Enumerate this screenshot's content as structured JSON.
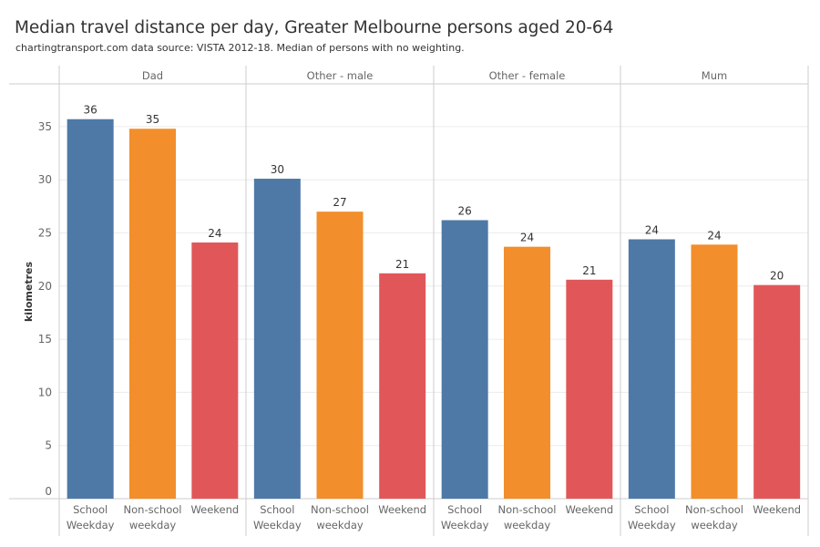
{
  "chart_data": {
    "type": "bar",
    "title": "Median travel distance per day, Greater Melbourne persons aged 20-64",
    "subtitle": "chartingtransport.com  data source: VISTA 2012-18. Median of persons with no weighting.",
    "xlabel": "",
    "ylabel": "kilometres",
    "ylim": [
      0,
      38
    ],
    "yticks": [
      0,
      5,
      10,
      15,
      20,
      25,
      30,
      35
    ],
    "grid": true,
    "categories": [
      [
        "School",
        "Weekday"
      ],
      [
        "Non-school",
        "weekday"
      ],
      [
        "Weekend"
      ]
    ],
    "category_keys": [
      "School Weekday",
      "Non-school weekday",
      "Weekend"
    ],
    "colors": [
      "#4e79a7",
      "#f28e2b",
      "#e15759"
    ],
    "panels": [
      {
        "name": "Dad",
        "values": [
          35.7,
          34.8,
          24.1
        ],
        "labels": [
          "36",
          "35",
          "24"
        ]
      },
      {
        "name": "Other - male",
        "values": [
          30.1,
          27.0,
          21.2
        ],
        "labels": [
          "30",
          "27",
          "21"
        ]
      },
      {
        "name": "Other - female",
        "values": [
          26.2,
          23.7,
          20.6
        ],
        "labels": [
          "26",
          "24",
          "21"
        ]
      },
      {
        "name": "Mum",
        "values": [
          24.4,
          23.9,
          20.1
        ],
        "labels": [
          "24",
          "24",
          "20"
        ]
      }
    ]
  }
}
